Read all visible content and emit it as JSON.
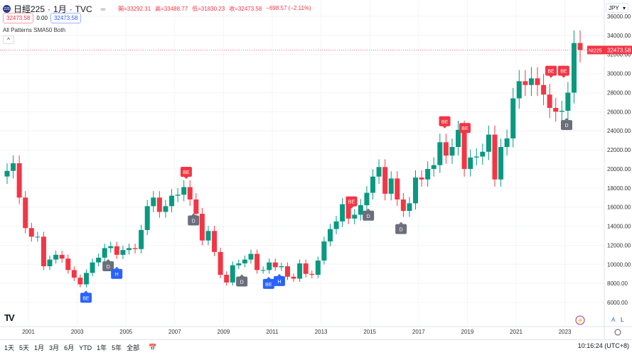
{
  "header": {
    "symbol": "日經225",
    "interval": "1月",
    "source": "TVC",
    "open_label": "開",
    "open": "33292.31",
    "high_label": "高",
    "high": "33488.77",
    "low_label": "低",
    "low": "31830.23",
    "close_label": "收",
    "close": "32473.58",
    "change": "−698.57 (−2.11%)",
    "sell": "32473.58",
    "spread": "0.00",
    "buy": "32473.58",
    "indicator": "All Patterns SMA50 Both",
    "currency": "JPY",
    "logo": "225"
  },
  "bottom": {
    "ranges": [
      "1天",
      "5天",
      "1月",
      "3月",
      "6月",
      "YTD",
      "1年",
      "5年",
      "全部"
    ],
    "time": "10:16:24 (UTC+8)",
    "auto": "A",
    "log": "L"
  },
  "colors": {
    "up": "#089981",
    "down": "#f23645",
    "bearish": "#f23645",
    "bullish": "#2962ff",
    "doji": "#6b6f7b"
  },
  "chart_data": {
    "type": "candlestick",
    "ylim": [
      6000,
      36000
    ],
    "yticks": [
      6000,
      8000,
      10000,
      12000,
      14000,
      16000,
      18000,
      20000,
      22000,
      24000,
      26000,
      28000,
      30000,
      32000,
      34000,
      36000
    ],
    "xticks": [
      "2001",
      "2003",
      "2005",
      "2007",
      "2009",
      "2011",
      "2013",
      "2015",
      "2017",
      "2019",
      "2021",
      "2023"
    ],
    "start": "2000-01",
    "period": "quarter",
    "closes": [
      19800,
      20600,
      17000,
      13800,
      12900,
      12900,
      9800,
      10500,
      11000,
      10600,
      9400,
      8600,
      7900,
      9100,
      10200,
      10700,
      11700,
      11900,
      11000,
      11500,
      11700,
      11600,
      13600,
      16100,
      17000,
      15500,
      16100,
      17200,
      17300,
      18100,
      16800,
      15300,
      12500,
      13500,
      11300,
      8900,
      8100,
      9900,
      10100,
      10500,
      11100,
      9400,
      9400,
      10200,
      9700,
      9800,
      8700,
      8500,
      10100,
      9000,
      8900,
      10400,
      12400,
      13700,
      14500,
      16300,
      14800,
      15200,
      16200,
      17500,
      19200,
      20200,
      17400,
      19000,
      16800,
      15600,
      16400,
      19100,
      18900,
      20000,
      20400,
      22800,
      21400,
      22300,
      24100,
      20000,
      21200,
      21300,
      21800,
      23600,
      18900,
      22300,
      23200,
      27400,
      29200,
      28800,
      29500,
      28800,
      27800,
      26400,
      26000,
      26100,
      28000,
      33200,
      32473.58
    ],
    "last_label": "NI225",
    "last_value": "32473.58",
    "markers": [
      {
        "label": "BE",
        "kind": "bearish",
        "year": 2007.47,
        "price": 19700
      },
      {
        "label": "BE",
        "kind": "bearish",
        "year": 2014.25,
        "price": 16600
      },
      {
        "label": "BE",
        "kind": "bearish",
        "year": 2018.07,
        "price": 25000
      },
      {
        "label": "BE",
        "kind": "bearish",
        "year": 2018.9,
        "price": 24300
      },
      {
        "label": "BE",
        "kind": "bearish",
        "year": 2022.43,
        "price": 30300
      },
      {
        "label": "BE",
        "kind": "bearish",
        "year": 2022.95,
        "price": 30300
      },
      {
        "label": "D",
        "kind": "doji",
        "year": 2004.27,
        "price": 9800
      },
      {
        "label": "D",
        "kind": "doji",
        "year": 2007.77,
        "price": 14600
      },
      {
        "label": "D",
        "kind": "doji",
        "year": 2009.75,
        "price": 8200
      },
      {
        "label": "D",
        "kind": "doji",
        "year": 2014.94,
        "price": 15100
      },
      {
        "label": "D",
        "kind": "doji",
        "year": 2016.28,
        "price": 13700
      },
      {
        "label": "D",
        "kind": "doji",
        "year": 2023.07,
        "price": 24600
      },
      {
        "label": "BE",
        "kind": "bullish",
        "year": 2003.36,
        "price": 6500
      },
      {
        "label": "BE",
        "kind": "bullish",
        "year": 2010.85,
        "price": 7950
      },
      {
        "label": "H",
        "kind": "bullish",
        "year": 2004.62,
        "price": 9000
      },
      {
        "label": "H",
        "kind": "bullish",
        "year": 2011.29,
        "price": 8250
      }
    ]
  }
}
